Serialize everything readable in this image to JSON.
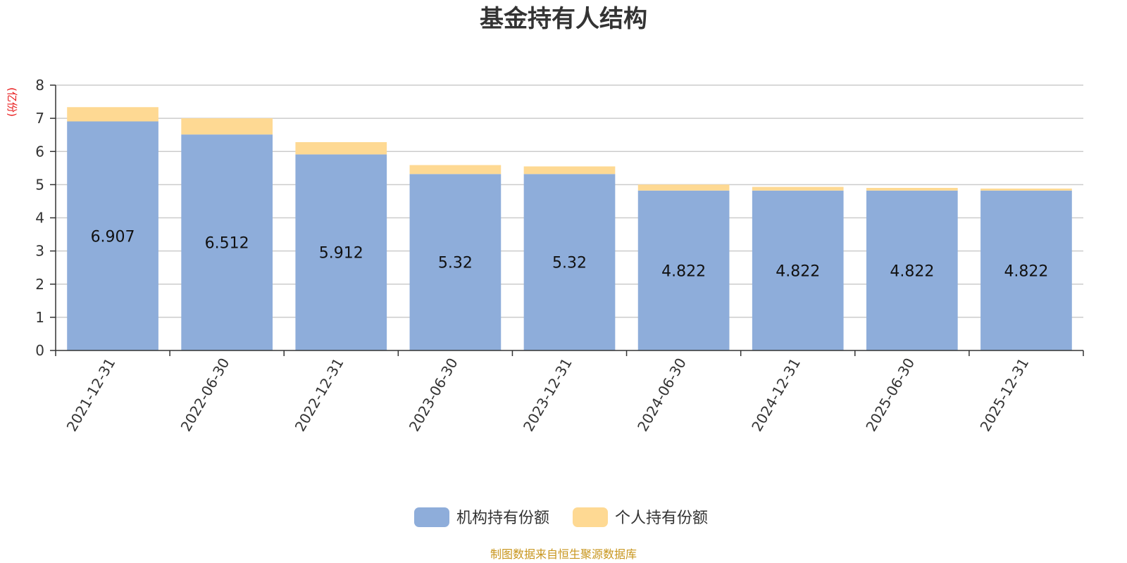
{
  "chart_data": {
    "type": "bar",
    "stacked": true,
    "title": "基金持有人结构",
    "unit_label": "(亿份)",
    "ylim": [
      0,
      8
    ],
    "yticks": [
      0,
      1,
      2,
      3,
      4,
      5,
      6,
      7,
      8
    ],
    "grid": true,
    "legend_position": "bottom",
    "categories": [
      "2021-12-31",
      "2022-06-30",
      "2022-12-31",
      "2023-06-30",
      "2023-12-31",
      "2024-06-30",
      "2024-12-31",
      "2025-06-30",
      "2025-12-31"
    ],
    "series": [
      {
        "name": "机构持有份额",
        "color": "#8eadda",
        "values": [
          6.907,
          6.512,
          5.912,
          5.32,
          5.32,
          4.822,
          4.822,
          4.822,
          4.822
        ],
        "labels": [
          "6.907",
          "6.512",
          "5.912",
          "5.32",
          "5.32",
          "4.822",
          "4.822",
          "4.822",
          "4.822"
        ]
      },
      {
        "name": "个人持有份额",
        "color": "#fed993",
        "values": [
          0.43,
          0.49,
          0.37,
          0.27,
          0.23,
          0.18,
          0.11,
          0.08,
          0.06
        ]
      }
    ],
    "source": "制图数据来自恒生聚源数据库"
  }
}
